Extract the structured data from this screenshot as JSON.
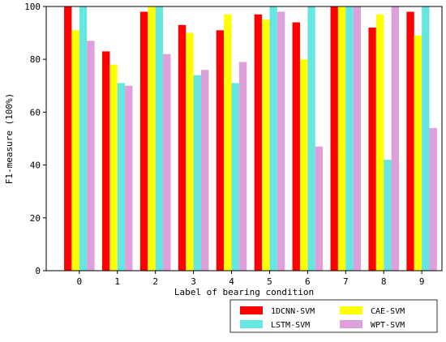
{
  "chart_data": {
    "type": "bar",
    "title": "",
    "xlabel": "Label of bearing condition",
    "ylabel": "F1-measure (100%)",
    "ylim": [
      0,
      100
    ],
    "yticks": [
      0,
      20,
      40,
      60,
      80,
      100
    ],
    "categories": [
      "0",
      "1",
      "2",
      "3",
      "4",
      "5",
      "6",
      "7",
      "8",
      "9"
    ],
    "grid": false,
    "legend_position": "bottom-right",
    "series": [
      {
        "name": "1DCNN-SVM",
        "color": "#ff0000",
        "values": [
          100,
          83,
          98,
          93,
          91,
          97,
          94,
          100,
          92,
          98
        ]
      },
      {
        "name": "CAE-SVM",
        "color": "#ffff00",
        "values": [
          91,
          78,
          100,
          90,
          97,
          95,
          80,
          100,
          97,
          89
        ]
      },
      {
        "name": "LSTM-SVM",
        "color": "#66e6e0",
        "values": [
          100,
          71,
          100,
          74,
          71,
          100,
          100,
          100,
          42,
          100
        ]
      },
      {
        "name": "WPT-SVM",
        "color": "#dda0dd",
        "values": [
          87,
          70,
          82,
          76,
          79,
          98,
          47,
          100,
          100,
          54
        ]
      }
    ]
  }
}
